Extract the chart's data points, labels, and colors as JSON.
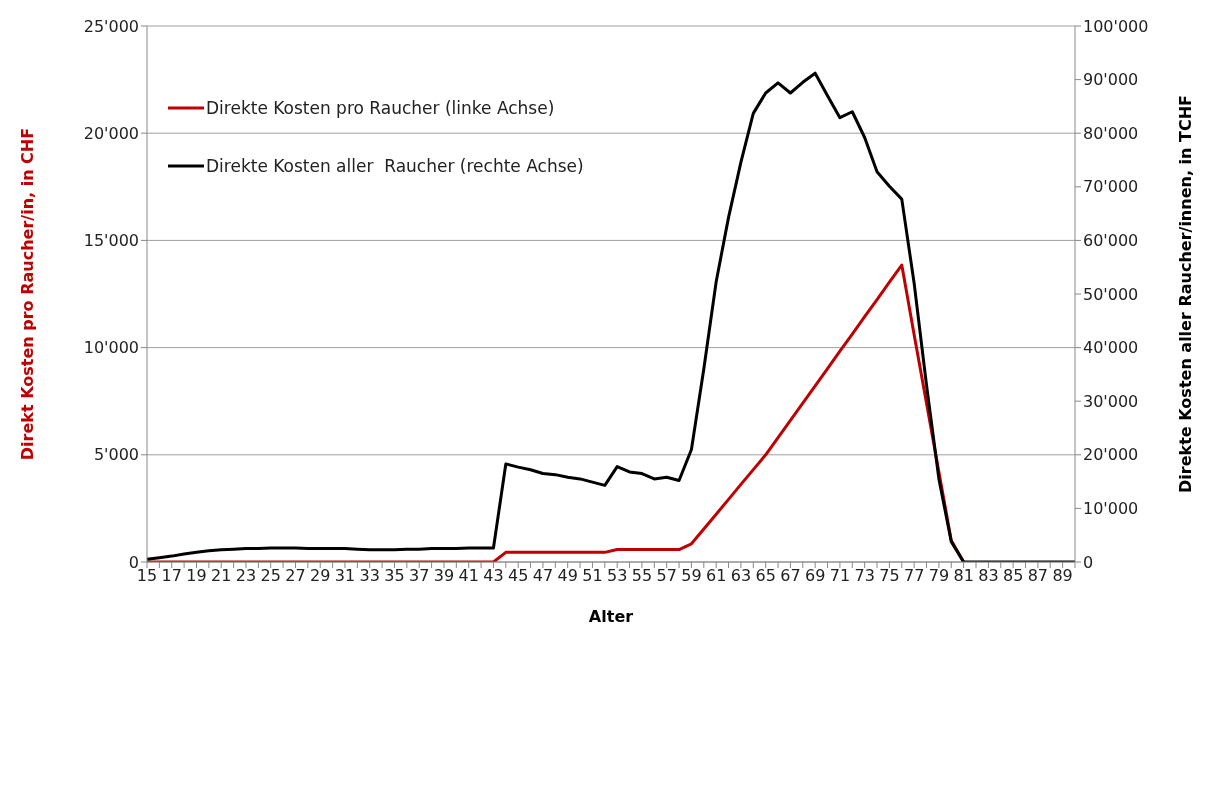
{
  "chart_data": {
    "type": "line",
    "xlabel": "Alter",
    "ylabel": "Direkt Kosten pro Raucher/in, in CHF",
    "y2label": "Direkte Kosten aller Raucher/innen,  in TCHF",
    "categories": [
      "15",
      null,
      "17",
      null,
      "19",
      null,
      "21",
      null,
      "23",
      null,
      "25",
      null,
      "27",
      null,
      "29",
      null,
      "31",
      null,
      "33",
      null,
      "35",
      null,
      "37",
      null,
      "39",
      null,
      "41",
      null,
      "43",
      null,
      "45",
      null,
      "47",
      null,
      "49",
      null,
      "51",
      null,
      "53",
      null,
      "55",
      null,
      "57",
      null,
      "59",
      null,
      "61",
      null,
      "63",
      null,
      "65",
      null,
      "67",
      null,
      "69",
      null,
      "71",
      null,
      "73",
      null,
      "75",
      null,
      "77",
      null,
      "79",
      null,
      "81",
      null,
      "83",
      null,
      "85",
      null,
      "87",
      null,
      "89",
      null
    ],
    "series": [
      {
        "name": "Direkte Kosten pro Raucher (linke Achse)",
        "color": "#c00000",
        "values": [
          0,
          0,
          0,
          0,
          0,
          0,
          0,
          0,
          0,
          0,
          0,
          0,
          0,
          0,
          0,
          0,
          0,
          0,
          0,
          0,
          0,
          0,
          0,
          0,
          0,
          0,
          0,
          0,
          0,
          450,
          450,
          450,
          450,
          450,
          450,
          450,
          450,
          450,
          580,
          580,
          580,
          580,
          580,
          580,
          850,
          1540,
          2230,
          2920,
          3620,
          4310,
          5000,
          5800,
          6610,
          7410,
          8220,
          9020,
          9830,
          10630,
          11440,
          12240,
          13050,
          13850,
          10600,
          7400,
          4200,
          1000,
          0,
          null,
          null,
          null,
          null,
          null,
          null,
          null,
          null,
          null
        ]
      },
      {
        "name": "Direkte Kosten aller  Raucher (rechte Achse)",
        "color": "#000000",
        "axis": "y2",
        "values": [
          500,
          800,
          1100,
          1500,
          1800,
          2100,
          2300,
          2400,
          2500,
          2500,
          2600,
          2600,
          2600,
          2500,
          2500,
          2500,
          2500,
          2400,
          2300,
          2300,
          2300,
          2400,
          2400,
          2500,
          2500,
          2500,
          2600,
          2600,
          2600,
          18300,
          17700,
          17200,
          16500,
          16300,
          15800,
          15500,
          14900,
          14300,
          17800,
          16800,
          16500,
          15500,
          15800,
          15200,
          21000,
          36000,
          52300,
          64300,
          74600,
          83700,
          87500,
          89400,
          87500,
          89500,
          91200,
          87000,
          82900,
          84000,
          79200,
          72800,
          70100,
          67700,
          52000,
          33000,
          15500,
          3800,
          0,
          0,
          0,
          0,
          0,
          0,
          0,
          0,
          0,
          0
        ]
      }
    ],
    "ylim": [
      0,
      25000
    ],
    "yticks": [
      0,
      {
        "value": 5000,
        "label": "5'000"
      },
      {
        "value": 10000,
        "label": "10'000"
      },
      {
        "value": 15000,
        "label": "15'000"
      },
      {
        "value": 20000,
        "label": "20'000"
      },
      {
        "value": 25000,
        "label": "25'000"
      }
    ],
    "y2lim": [
      0,
      100000
    ],
    "y2ticks": [
      0,
      {
        "value": 10000,
        "label": "10'000"
      },
      {
        "value": 20000,
        "label": "20'000"
      },
      {
        "value": 30000,
        "label": "30'000"
      },
      {
        "value": 40000,
        "label": "40'000"
      },
      {
        "value": 50000,
        "label": "50'000"
      },
      {
        "value": 60000,
        "label": "60'000"
      },
      {
        "value": 70000,
        "label": "70'000"
      },
      {
        "value": 80000,
        "label": "80'000"
      },
      {
        "value": 90000,
        "label": "90'000"
      },
      {
        "value": 100000,
        "label": "100'000"
      }
    ],
    "grid": "y",
    "legend": "top left",
    "marker": "none",
    "line_style": "solid"
  }
}
